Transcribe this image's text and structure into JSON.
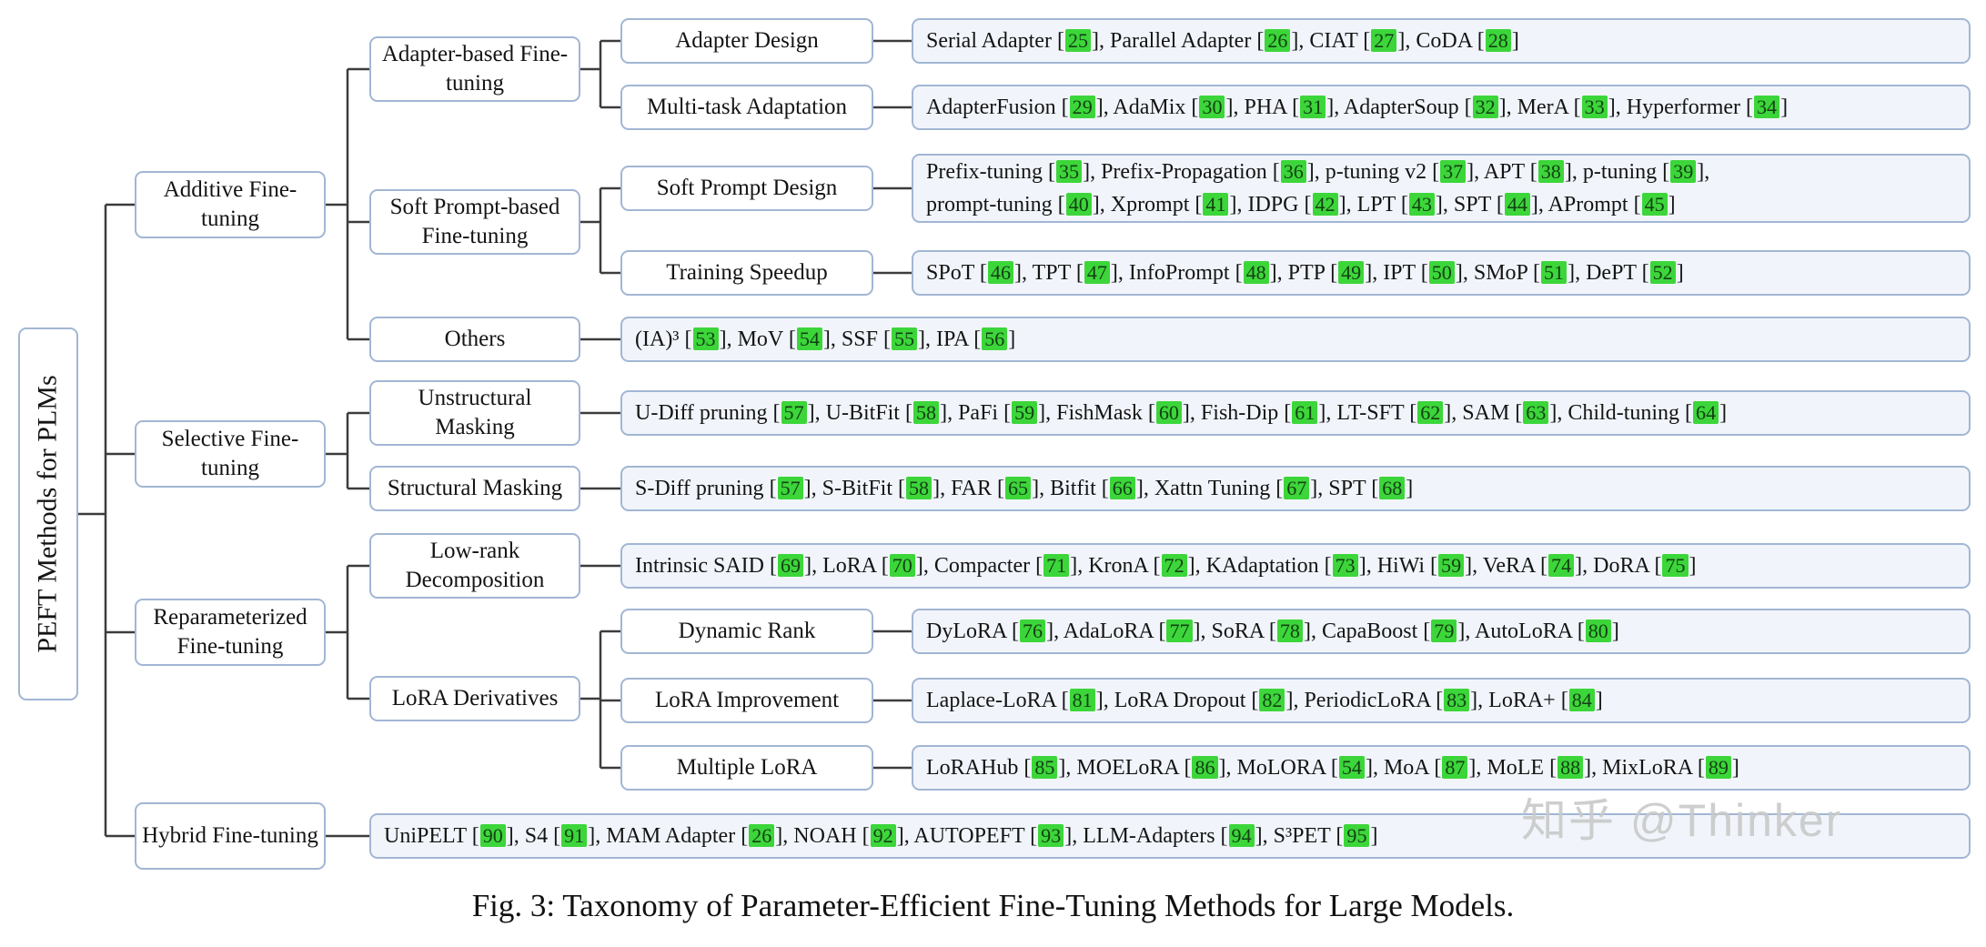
{
  "caption": "Fig. 3: Taxonomy of Parameter-Efficient Fine-Tuning Methods for Large Models.",
  "watermark": "知乎 @Thinker",
  "root_label": "PEFT Methods for PLMs",
  "nodes": {
    "additive": "Additive Fine-tuning",
    "selective": "Selective Fine-tuning",
    "reparameterized": "Reparameterized Fine-tuning",
    "hybrid": "Hybrid Fine-tuning",
    "adapter_based": "Adapter-based Fine-tuning",
    "soft_prompt_based": "Soft Prompt-based Fine-tuning",
    "others": "Others",
    "unstructural_masking": "Unstructural Masking",
    "structural_masking": "Structural Masking",
    "low_rank_decomposition": "Low-rank Decomposition",
    "lora_derivatives": "LoRA Derivatives",
    "adapter_design": "Adapter Design",
    "multi_task_adaptation": "Multi-task Adaptation",
    "soft_prompt_design": "Soft Prompt Design",
    "training_speedup": "Training Speedup",
    "dynamic_rank": "Dynamic Rank",
    "lora_improvement": "LoRA Improvement",
    "multiple_lora": "Multiple LoRA"
  },
  "leaves": {
    "adapter_design": "Serial Adapter [25], Parallel Adapter [26], CIAT [27], CoDA [28]",
    "multi_task_adaptation": "AdapterFusion [29], AdaMix [30], PHA [31], AdapterSoup [32], MerA [33], Hyperformer [34]",
    "soft_prompt_design": "Prefix-tuning [35], Prefix-Propagation [36], p-tuning v2 [37], APT [38], p-tuning [39],\nprompt-tuning [40], Xprompt [41], IDPG [42], LPT [43], SPT [44], APrompt [45]",
    "training_speedup": "SPoT [46], TPT [47], InfoPrompt [48], PTP [49], IPT [50], SMoP [51], DePT [52]",
    "others": "(IA)³ [53], MoV [54], SSF [55], IPA [56]",
    "unstructural_masking": "U-Diff pruning [57], U-BitFit [58], PaFi [59], FishMask [60], Fish-Dip [61], LT-SFT [62], SAM [63], Child-tuning [64]",
    "structural_masking": "S-Diff pruning [57], S-BitFit [58], FAR [65], Bitfit [66], Xattn Tuning [67], SPT [68]",
    "low_rank_decomposition": "Intrinsic SAID [69], LoRA [70], Compacter [71], KronA [72], KAdaptation [73], HiWi [59], VeRA [74], DoRA [75]",
    "dynamic_rank": "DyLoRA [76], AdaLoRA [77], SoRA [78], CapaBoost [79], AutoLoRA [80]",
    "lora_improvement": "Laplace-LoRA [81], LoRA Dropout [82], PeriodicLoRA [83], LoRA+ [84]",
    "multiple_lora": "LoRAHub [85], MOELoRA [86], MoLORA [54], MoA [87], MoLE [88], MixLoRA [89]",
    "hybrid": "UniPELT [90], S4 [91], MAM Adapter [26], NOAH [92], AUTOPEFT [93], LLM-Adapters [94], S³PET [95]"
  },
  "colors": {
    "box_border": "#a2b6d4",
    "leaf_bg": "#f1f5fb",
    "node_bg": "#ffffff",
    "connector": "#3c3c3c",
    "cite_bg": "#3cd63a",
    "cite_text": "#143f14",
    "text": "#141414",
    "watermark": "#c9c9c9"
  }
}
